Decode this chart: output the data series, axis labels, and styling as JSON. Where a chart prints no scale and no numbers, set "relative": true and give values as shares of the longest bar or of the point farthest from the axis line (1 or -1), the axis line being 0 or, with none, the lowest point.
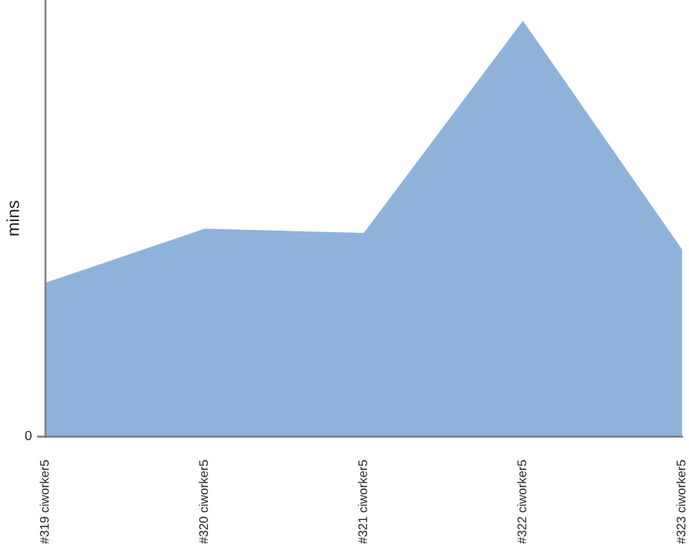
{
  "chart_data": {
    "type": "area",
    "ylabel": "mins",
    "categories": [
      "#319 ciworker5",
      "#320 ciworker5",
      "#321 ciworker5",
      "#322 ciworker5",
      "#323 ciworker5"
    ],
    "values": [
      0.37,
      0.5,
      0.49,
      1,
      0.45
    ],
    "color": "#8fb2db",
    "relative": true,
    "annotations": [
      "0"
    ]
  }
}
